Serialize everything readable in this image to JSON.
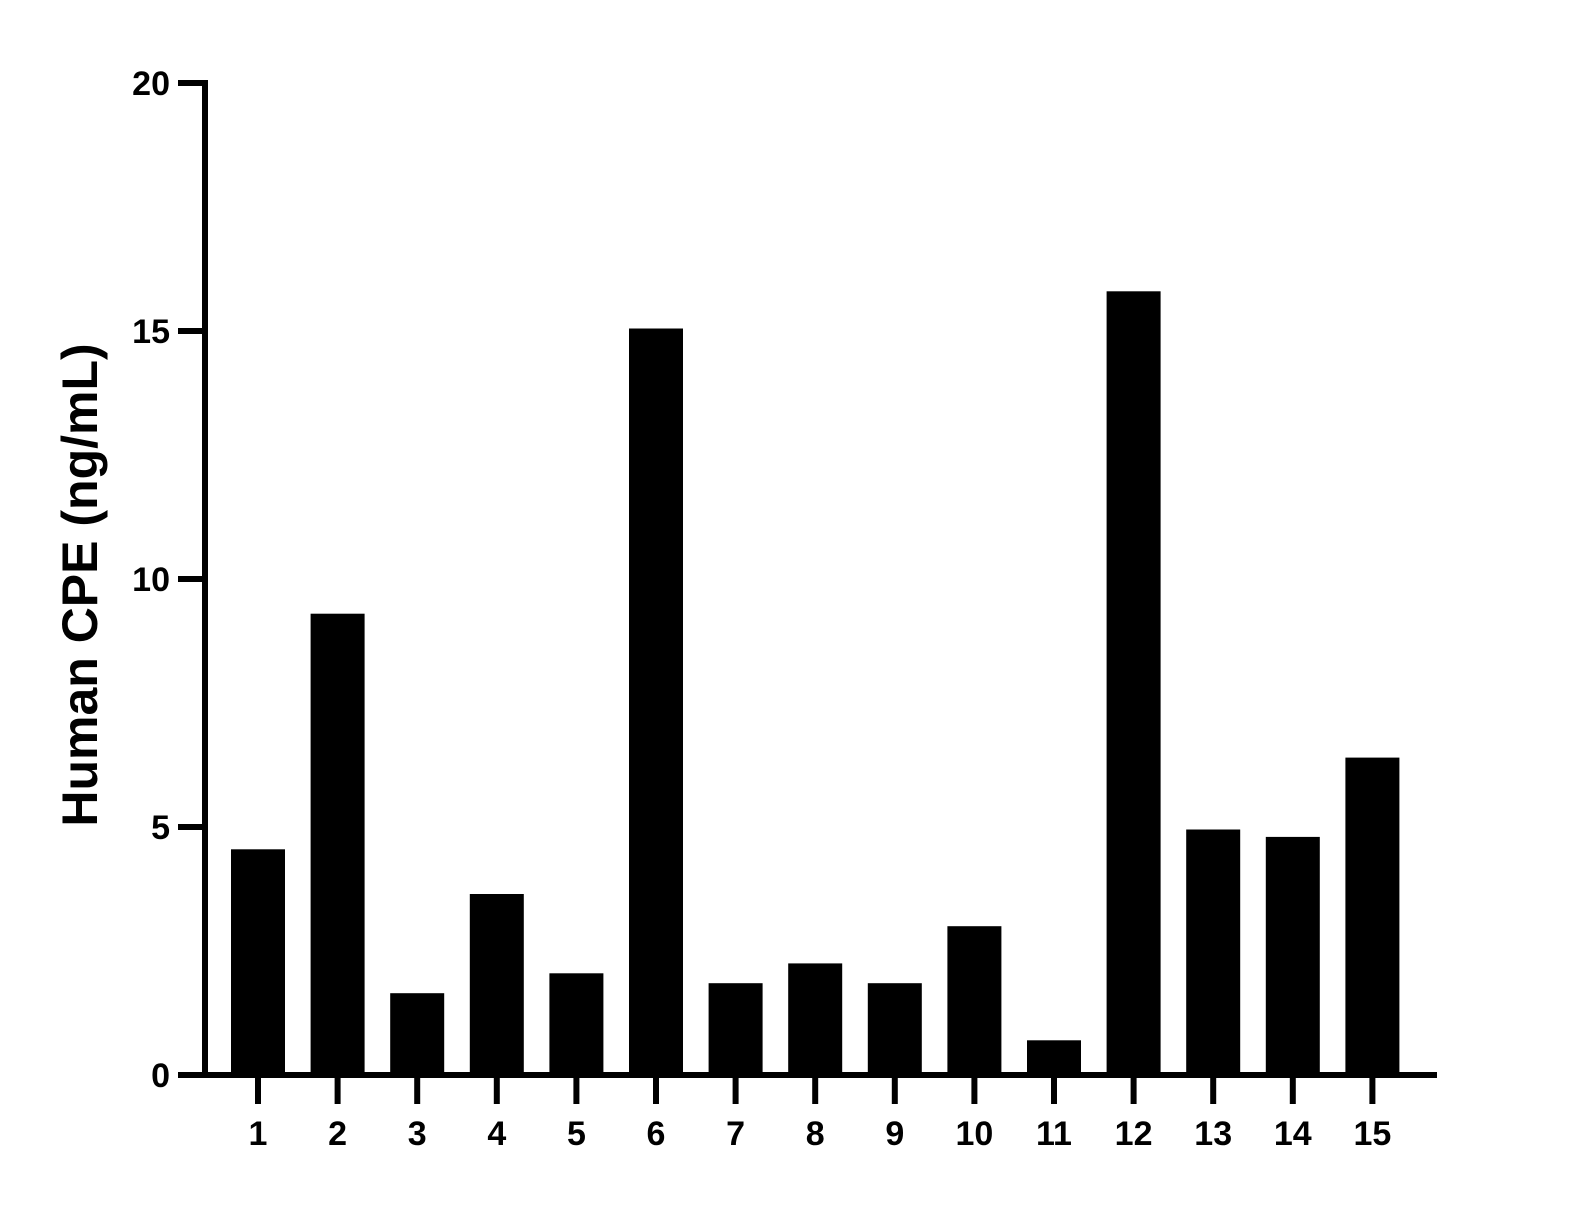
{
  "chart_data": {
    "type": "bar",
    "categories": [
      "1",
      "2",
      "3",
      "4",
      "5",
      "6",
      "7",
      "8",
      "9",
      "10",
      "11",
      "12",
      "13",
      "14",
      "15"
    ],
    "values": [
      4.55,
      9.3,
      1.65,
      3.65,
      2.05,
      15.05,
      1.85,
      2.25,
      1.85,
      3.0,
      0.7,
      15.8,
      4.95,
      4.8,
      6.4
    ],
    "ylabel": "Human CPE (ng/mL)",
    "xlabel": "",
    "ylim": [
      0,
      20
    ],
    "yticks": [
      0,
      5,
      10,
      15,
      20
    ],
    "bar_color": "#000000",
    "grid": false,
    "legend": "none"
  }
}
